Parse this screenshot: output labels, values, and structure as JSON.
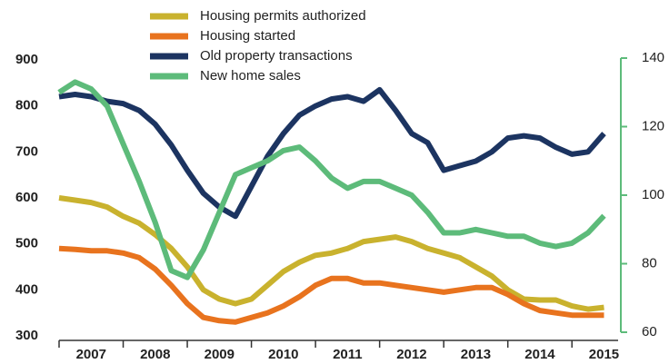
{
  "chart_data": {
    "type": "line",
    "x": [
      2007,
      2007.25,
      2007.5,
      2007.75,
      2008,
      2008.25,
      2008.5,
      2008.75,
      2009,
      2009.25,
      2009.5,
      2009.75,
      2010,
      2010.25,
      2010.5,
      2010.75,
      2011,
      2011.25,
      2011.5,
      2011.75,
      2012,
      2012.25,
      2012.5,
      2012.75,
      2013,
      2013.25,
      2013.5,
      2013.75,
      2014,
      2014.25,
      2014.5,
      2014.75,
      2015,
      2015.25,
      2015.5
    ],
    "xlim": [
      2007,
      2015.72
    ],
    "xticks": [
      2007,
      2008,
      2009,
      2010,
      2011,
      2012,
      2013,
      2014,
      2015
    ],
    "ylim": [
      300,
      900
    ],
    "yticks": [
      300,
      400,
      500,
      600,
      700,
      800,
      900
    ],
    "y2lim": [
      60,
      140
    ],
    "y2ticks": [
      60,
      80,
      100,
      120,
      140
    ],
    "y2color": "#5dbb7a",
    "series": [
      {
        "name": "Housing permits authorized",
        "color": "#c9b22e",
        "values": [
          600,
          595,
          590,
          580,
          560,
          545,
          520,
          490,
          450,
          400,
          380,
          370,
          380,
          410,
          440,
          460,
          475,
          480,
          490,
          505,
          510,
          515,
          505,
          490,
          480,
          470,
          450,
          430,
          400,
          380,
          378,
          378,
          365,
          358,
          362
        ]
      },
      {
        "name": "Housing started",
        "color": "#e8731e",
        "values": [
          490,
          488,
          485,
          485,
          480,
          470,
          445,
          410,
          370,
          340,
          333,
          330,
          340,
          350,
          365,
          385,
          410,
          425,
          425,
          415,
          415,
          410,
          405,
          400,
          395,
          400,
          405,
          405,
          390,
          370,
          355,
          350,
          345,
          345,
          345
        ]
      },
      {
        "name": "Old property transactions",
        "color": "#1c3461",
        "values": [
          820,
          825,
          820,
          810,
          805,
          790,
          760,
          715,
          660,
          610,
          580,
          560,
          625,
          690,
          740,
          780,
          800,
          815,
          820,
          810,
          835,
          790,
          740,
          720,
          660,
          670,
          680,
          700,
          730,
          735,
          730,
          710,
          695,
          700,
          740
        ]
      },
      {
        "name": "New home sales",
        "color": "#5dbb7a",
        "axis": "y2",
        "values": [
          130,
          133,
          131,
          126,
          115,
          104,
          92,
          78,
          76,
          84,
          95,
          106,
          108,
          110,
          113,
          114,
          110,
          105,
          102,
          104,
          104,
          102,
          100,
          95,
          89,
          89,
          90,
          89,
          88,
          88,
          86,
          85,
          86,
          89,
          94
        ]
      }
    ]
  }
}
